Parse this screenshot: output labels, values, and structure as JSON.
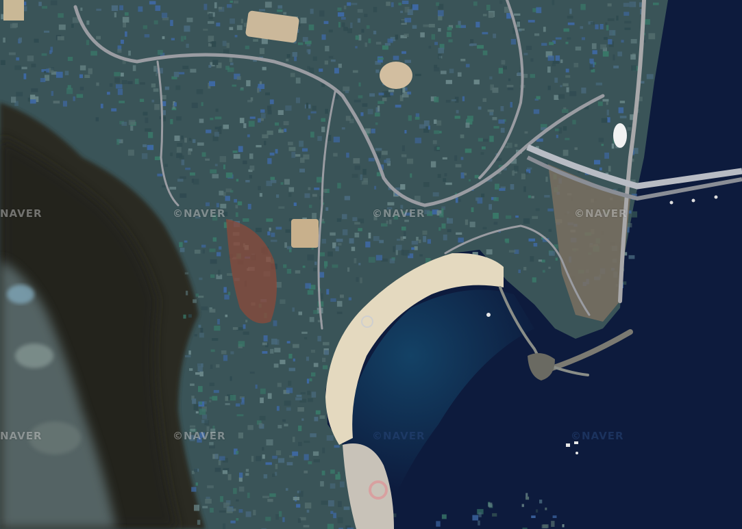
{
  "map": {
    "type": "satellite",
    "attribution": "NAVER",
    "watermarks": [
      {
        "text": "NAVER"
      },
      {
        "text": "©NAVER"
      },
      {
        "text": "©NAVER"
      },
      {
        "text": "©NAVER"
      },
      {
        "text": "NAVER"
      },
      {
        "text": "©NAVER"
      },
      {
        "text": "©NAVER"
      },
      {
        "text": "©NAVER"
      }
    ],
    "colors": {
      "sea": "#0d1b3d",
      "sea_shallow": "#1a5a6e",
      "beach": "#e6dcc2",
      "urban": "#3a5458",
      "forest": "#2a2a22",
      "roof_blue": "#3f6aa8",
      "roof_green": "#3a7a6a",
      "roof_red": "#9a5040",
      "road": "#8a8c90"
    }
  }
}
